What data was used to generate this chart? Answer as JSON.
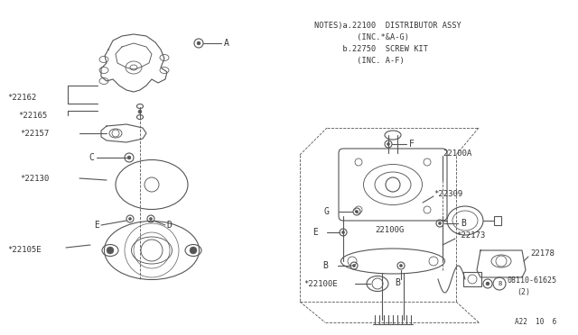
{
  "bg_color": "#ffffff",
  "line_color": "#555555",
  "text_color": "#333333",
  "notes_lines": [
    "NOTES)a.22100  DISTRIBUTOR ASSY",
    "         (INC.*&A-G)",
    "      b.22750  SCREW KIT",
    "         (INC. A-F)"
  ],
  "footer": "A22  10  6"
}
